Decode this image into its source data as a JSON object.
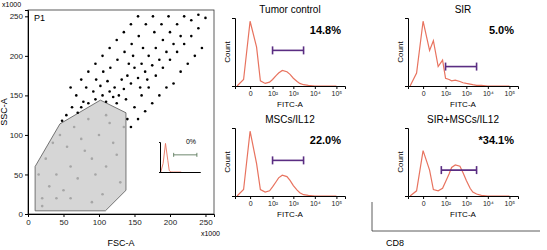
{
  "chart_data": [
    {
      "type": "scatter",
      "xlabel": "FSC-A",
      "ylabel": "SSC-A",
      "x_scale_label": "x1000",
      "y_scale_label": "x1000",
      "xlim": [
        0,
        262
      ],
      "ylim": [
        0,
        258
      ],
      "xticks": [
        0,
        50,
        100,
        150,
        200,
        250
      ],
      "yticks": [
        0,
        50,
        100,
        150,
        200,
        250
      ],
      "gate": {
        "label": "P1",
        "x": [
          10,
          10,
          45,
          102,
          138,
          138,
          109
        ],
        "y": [
          4,
          60,
          114,
          144,
          128,
          30,
          4
        ]
      },
      "series": [
        {
          "color": "#a6a6a6",
          "x": [
            20,
            30,
            40,
            50,
            60,
            70,
            80,
            90,
            100,
            110,
            120,
            130,
            25,
            35,
            45,
            55,
            65,
            75,
            85,
            95,
            105,
            115,
            125,
            135,
            15,
            20,
            60,
            90,
            40,
            110
          ],
          "values": [
            20,
            35,
            50,
            30,
            60,
            45,
            80,
            70,
            100,
            60,
            90,
            40,
            70,
            90,
            100,
            85,
            110,
            95,
            120,
            50,
            25,
            115,
            75,
            110,
            50,
            10,
            20,
            15,
            20,
            125
          ]
        },
        {
          "color": "#000000",
          "x": [
            70,
            75,
            85,
            95,
            105,
            110,
            115,
            120,
            78,
            92,
            102,
            112,
            122,
            128,
            132,
            125,
            135,
            140,
            145,
            150,
            155,
            160,
            165,
            170,
            175,
            180,
            185,
            190,
            195,
            200,
            205,
            210,
            215,
            220,
            230,
            240,
            250,
            138,
            142,
            148,
            158,
            162,
            168,
            178,
            188,
            198,
            62,
            68,
            82,
            96,
            106,
            116,
            126,
            136,
            146,
            156,
            166,
            176,
            140,
            150,
            160,
            170,
            180,
            190,
            200,
            210,
            220,
            230,
            240,
            245,
            235,
            225,
            215,
            205,
            195,
            185,
            175,
            165,
            155,
            145,
            54,
            48,
            60,
            75,
            85,
            95,
            105,
            115,
            125,
            135,
            145,
            155
          ],
          "values": [
            128,
            135,
            140,
            145,
            150,
            142,
            155,
            148,
            142,
            155,
            162,
            168,
            160,
            150,
            170,
            140,
            158,
            175,
            165,
            185,
            172,
            190,
            180,
            200,
            188,
            210,
            195,
            220,
            205,
            230,
            215,
            240,
            225,
            250,
            245,
            252,
            248,
            145,
            190,
            200,
            160,
            210,
            170,
            230,
            240,
            250,
            135,
            150,
            160,
            170,
            180,
            185,
            195,
            205,
            215,
            225,
            240,
            250,
            120,
            135,
            150,
            160,
            175,
            185,
            195,
            205,
            215,
            225,
            235,
            210,
            200,
            190,
            180,
            165,
            160,
            150,
            140,
            130,
            120,
            110,
            125,
            118,
            160,
            170,
            180,
            190,
            200,
            210,
            220,
            230,
            240,
            250
          ]
        }
      ]
    },
    {
      "type": "line",
      "annotation": "0%",
      "log": "x",
      "tick_labels": false,
      "color": "#e8735f",
      "xlim": [
        -40,
        250000
      ],
      "ylim": [
        0,
        105
      ],
      "x": [
        -30,
        -10,
        0,
        10,
        20,
        40,
        100,
        1000
      ],
      "values": [
        0,
        30,
        100,
        40,
        5,
        0,
        0,
        0
      ],
      "gate": {
        "x": [
          100,
          100000
        ],
        "y": 60
      }
    },
    {
      "type": "line",
      "title": "Tumor control",
      "annotation": "14.8%",
      "xlabel": "FITC-A",
      "ylabel": "Count",
      "log": "x",
      "tick_labels": "x",
      "color": "#e8735f",
      "xlim": [
        -40,
        250000
      ],
      "ylim": [
        0,
        105
      ],
      "xticks": [
        0,
        {
          "value": 100,
          "label": "10²"
        },
        {
          "value": 1000,
          "label": "10³"
        },
        {
          "value": 10000,
          "label": "10⁴"
        },
        {
          "value": 100000,
          "label": "10⁵"
        }
      ],
      "x": [
        -30,
        -10,
        0,
        10,
        20,
        40,
        70,
        100,
        150,
        200,
        300,
        500,
        700,
        1000,
        1500,
        2000,
        3000,
        5000,
        10000,
        30000,
        100000
      ],
      "values": [
        0,
        10,
        100,
        60,
        8,
        4,
        6,
        10,
        16,
        20,
        24,
        22,
        18,
        12,
        7,
        4,
        2,
        1,
        0,
        0,
        0
      ],
      "gate": {
        "x": [
          100,
          3000
        ],
        "y": 55
      }
    },
    {
      "type": "line",
      "title": "SIR",
      "annotation": "5.0%",
      "xlabel": "FITC-A",
      "ylabel": "Count",
      "log": "x",
      "tick_labels": "x",
      "color": "#e8735f",
      "xlim": [
        -40,
        250000
      ],
      "ylim": [
        0,
        105
      ],
      "xticks": [
        0,
        {
          "value": 100,
          "label": "10²"
        },
        {
          "value": 1000,
          "label": "10³"
        },
        {
          "value": 10000,
          "label": "10⁴"
        },
        {
          "value": 100000,
          "label": "10⁵"
        }
      ],
      "x": [
        -30,
        -10,
        0,
        10,
        20,
        40,
        70,
        100,
        150,
        200,
        300,
        500,
        700,
        1000,
        1500,
        2000,
        3000,
        5000,
        10000,
        30000,
        100000
      ],
      "values": [
        0,
        20,
        100,
        55,
        70,
        30,
        40,
        12,
        10,
        8,
        9,
        7,
        5,
        4,
        3,
        2,
        1,
        1,
        0,
        0,
        0
      ],
      "gate": {
        "x": [
          100,
          3000
        ],
        "y": 30
      }
    },
    {
      "type": "line",
      "title": "MSCs/IL12",
      "annotation": "22.0%",
      "xlabel": "FITC-A",
      "ylabel": "Count",
      "log": "x",
      "tick_labels": "x",
      "color": "#e8735f",
      "xlim": [
        -40,
        250000
      ],
      "ylim": [
        0,
        105
      ],
      "xticks": [
        0,
        {
          "value": 100,
          "label": "10²"
        },
        {
          "value": 1000,
          "label": "10³"
        },
        {
          "value": 10000,
          "label": "10⁴"
        },
        {
          "value": 100000,
          "label": "10⁵"
        }
      ],
      "x": [
        -30,
        -10,
        0,
        10,
        20,
        40,
        70,
        100,
        150,
        200,
        300,
        500,
        700,
        1000,
        1500,
        2000,
        3000,
        5000,
        10000,
        30000,
        100000
      ],
      "values": [
        0,
        10,
        100,
        50,
        10,
        6,
        8,
        14,
        22,
        28,
        32,
        30,
        24,
        16,
        9,
        5,
        2,
        1,
        0,
        0,
        0
      ],
      "gate": {
        "x": [
          100,
          3000
        ],
        "y": 55
      }
    },
    {
      "type": "line",
      "title": "SIR+MSCs/IL12",
      "annotation": "*34.1%",
      "xlabel": "FITC-A",
      "ylabel": "Count",
      "log": "x",
      "tick_labels": "x",
      "color": "#e8735f",
      "xlim": [
        -40,
        250000
      ],
      "ylim": [
        0,
        105
      ],
      "xticks": [
        0,
        {
          "value": 100,
          "label": "10²"
        },
        {
          "value": 1000,
          "label": "10³"
        },
        {
          "value": 10000,
          "label": "10⁴"
        },
        {
          "value": 100000,
          "label": "10⁵"
        }
      ],
      "x": [
        -30,
        -10,
        0,
        10,
        20,
        40,
        70,
        100,
        150,
        200,
        300,
        500,
        700,
        1000,
        1500,
        2000,
        3000,
        5000,
        10000,
        30000,
        100000
      ],
      "values": [
        0,
        8,
        70,
        40,
        10,
        8,
        12,
        22,
        34,
        44,
        48,
        46,
        36,
        24,
        12,
        6,
        3,
        1,
        0,
        0,
        0
      ],
      "gate": {
        "x": [
          60,
          3000
        ],
        "y": 40
      }
    }
  ],
  "figure": {
    "xlabel": "CD8"
  }
}
